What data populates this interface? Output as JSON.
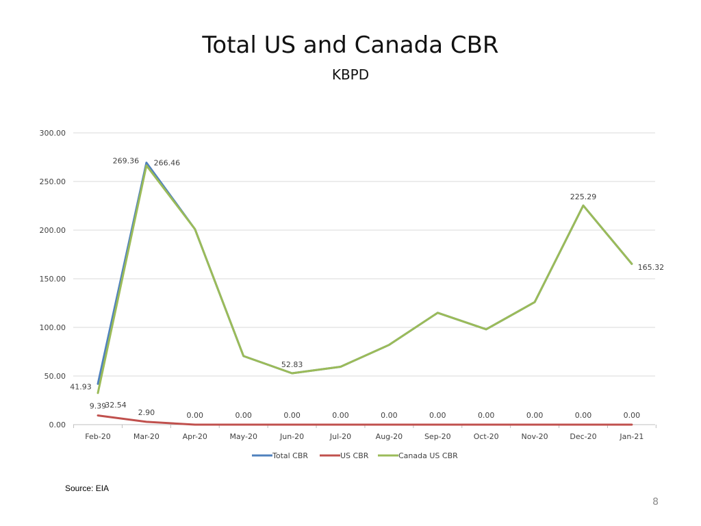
{
  "slide": {
    "title": "Total US and Canada CBR",
    "subtitle": "KBPD",
    "source": "Source: EIA",
    "page_number": "8"
  },
  "chart_data": {
    "type": "line",
    "title": "",
    "xlabel": "",
    "ylabel": "",
    "ylim": [
      0,
      300
    ],
    "yticks": [
      "0.00",
      "50.00",
      "100.00",
      "150.00",
      "200.00",
      "250.00",
      "300.00"
    ],
    "grid": true,
    "legend_position": "bottom",
    "categories": [
      "Feb-20",
      "Mar-20",
      "Apr-20",
      "May-20",
      "Jun-20",
      "Jul-20",
      "Aug-20",
      "Sep-20",
      "Oct-20",
      "Nov-20",
      "Dec-20",
      "Jan-21"
    ],
    "series": [
      {
        "name": "Total CBR",
        "color": "#4f81bd",
        "values": [
          41.93,
          269.36,
          201,
          70.5,
          52.83,
          59.5,
          82,
          115,
          98,
          126,
          225.29,
          165.32
        ]
      },
      {
        "name": "US CBR",
        "color": "#c0504d",
        "values": [
          9.39,
          2.9,
          0,
          0,
          0,
          0,
          0,
          0,
          0,
          0,
          0,
          0
        ]
      },
      {
        "name": "Canada US CBR",
        "color": "#9bbb59",
        "values": [
          32.54,
          266.46,
          201,
          70.5,
          52.83,
          59.5,
          82,
          115,
          98,
          126,
          225.29,
          165.32
        ]
      }
    ],
    "data_labels": [
      {
        "series": 0,
        "index": 0,
        "text": "41.93"
      },
      {
        "series": 0,
        "index": 1,
        "text": "269.36"
      },
      {
        "series": 2,
        "index": 0,
        "text": "32.54"
      },
      {
        "series": 2,
        "index": 1,
        "text": "266.46"
      },
      {
        "series": 1,
        "index": 0,
        "text": "9.39"
      },
      {
        "series": 1,
        "index": 1,
        "text": "2.90"
      },
      {
        "series": 1,
        "index": 2,
        "text": "0.00"
      },
      {
        "series": 1,
        "index": 3,
        "text": "0.00"
      },
      {
        "series": 1,
        "index": 4,
        "text": "0.00"
      },
      {
        "series": 1,
        "index": 5,
        "text": "0.00"
      },
      {
        "series": 1,
        "index": 6,
        "text": "0.00"
      },
      {
        "series": 1,
        "index": 7,
        "text": "0.00"
      },
      {
        "series": 1,
        "index": 8,
        "text": "0.00"
      },
      {
        "series": 1,
        "index": 9,
        "text": "0.00"
      },
      {
        "series": 1,
        "index": 10,
        "text": "0.00"
      },
      {
        "series": 1,
        "index": 11,
        "text": "0.00"
      },
      {
        "series": 2,
        "index": 4,
        "text": "52.83"
      },
      {
        "series": 2,
        "index": 10,
        "text": "225.29"
      },
      {
        "series": 2,
        "index": 11,
        "text": "165.32"
      }
    ]
  }
}
